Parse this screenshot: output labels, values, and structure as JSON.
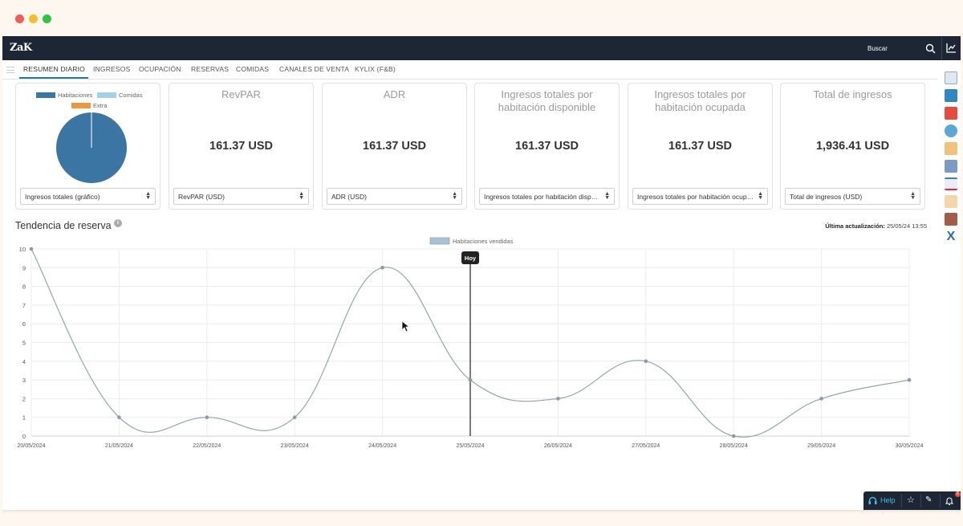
{
  "app": {
    "logo": "ZaK",
    "search_label": "Buscar"
  },
  "tabs": [
    {
      "label": "RESUMEN DIARIO",
      "active": true
    },
    {
      "label": "INGRESOS"
    },
    {
      "label": "OCUPACIÓN"
    },
    {
      "label": "RESERVAS"
    },
    {
      "label": "COMIDAS"
    },
    {
      "label": "CANALES DE VENTA"
    },
    {
      "label": "KYLIX (F&B)"
    }
  ],
  "cards": {
    "pie": {
      "legend": [
        "Habitaciones",
        "Comidas",
        "Extra"
      ],
      "legend_colors": [
        "#3b75a4",
        "#a6cfe9",
        "#f0953a"
      ],
      "slice_values": [
        100,
        0,
        0
      ],
      "select": "Ingresos totales (gráfico)"
    },
    "revpar": {
      "title": "RevPAR",
      "value": "161.37 USD",
      "select": "RevPAR (USD)"
    },
    "adr": {
      "title": "ADR",
      "value": "161.37 USD",
      "select": "ADR (USD)"
    },
    "avail": {
      "title": "Ingresos totales por habitación disponible",
      "value": "161.37 USD",
      "select": "Ingresos totales por habitación disponible (USD)"
    },
    "occ": {
      "title": "Ingresos totales por habitación ocupada",
      "value": "161.37 USD",
      "select": "Ingresos totales por habitación ocupada (USD)"
    },
    "total": {
      "title": "Total de ingresos",
      "value": "1,936.41 USD",
      "select": "Total de ingresos (USD)"
    }
  },
  "trend": {
    "title": "Tendencia de reserva",
    "info": "i",
    "update_label": "Última actualización:",
    "update_value": "25/05/24 13:55"
  },
  "chart_data": {
    "type": "line",
    "legend": "Habitaciones vendidas",
    "legend_placement": "top-center",
    "categories": [
      "20/05/2024",
      "21/05/2024",
      "22/05/2024",
      "23/05/2024",
      "24/05/2024",
      "25/05/2024",
      "26/05/2024",
      "27/05/2024",
      "28/05/2024",
      "29/05/2024",
      "30/05/2024"
    ],
    "series": [
      {
        "name": "Habitaciones vendidas",
        "values": [
          10,
          1,
          1,
          1,
          9,
          3,
          2,
          4,
          0,
          2,
          3
        ]
      }
    ],
    "ylim": [
      0,
      10
    ],
    "yticks": [
      0,
      1,
      2,
      3,
      4,
      5,
      6,
      7,
      8,
      9,
      10
    ],
    "grid": true,
    "marker": {
      "label": "Hoy",
      "at": "25/05/2024"
    },
    "line_color": "#8fa8a8"
  },
  "bottom_bar": {
    "help": "Help",
    "notifications": "6"
  }
}
